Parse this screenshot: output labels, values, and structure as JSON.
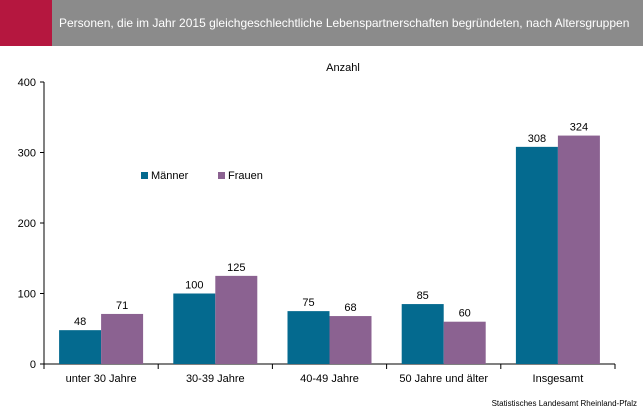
{
  "header": {
    "title": "Personen, die im Jahr 2015 gleichgeschlechtliche Lebenspartnerschaften begründeten, nach Altersgruppen",
    "accent_color": "#b5173f",
    "band_color": "#8b8b8b"
  },
  "source": "Statistisches Landesamt Rheinland-Pfalz",
  "chart_data": {
    "type": "bar",
    "title": "Anzahl",
    "xlabel": "",
    "ylabel": "",
    "ylim": [
      0,
      400
    ],
    "yticks": [
      0,
      100,
      200,
      300,
      400
    ],
    "grid": false,
    "legend_position": "left, inside plot",
    "categories": [
      "unter 30 Jahre",
      "30-39 Jahre",
      "40-49 Jahre",
      "50 Jahre und älter",
      "Insgesamt"
    ],
    "series": [
      {
        "name": "Männer",
        "color": "#046a8f",
        "values": [
          48,
          100,
          75,
          85,
          308
        ]
      },
      {
        "name": "Frauen",
        "color": "#8b6291",
        "values": [
          71,
          125,
          68,
          60,
          324
        ]
      }
    ]
  }
}
